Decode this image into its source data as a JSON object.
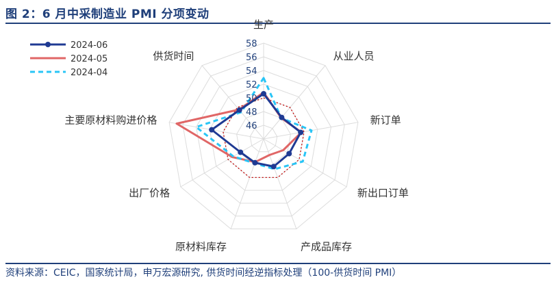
{
  "header": {
    "title": "图 2：6 月中采制造业 PMI 分项变动"
  },
  "footer": {
    "source": "资料来源：CEIC，国家统计局，申万宏源研究, 供货时间经逆指标处理（100-供货时间 PMI）"
  },
  "chart_data": {
    "type": "radar",
    "axes": [
      "生产",
      "从业人员",
      "新订单",
      "新出口订单",
      "产成品库存",
      "原材料库存",
      "出厂价格",
      "主要原材料购进价格",
      "供货时间"
    ],
    "ticks": [
      "46",
      "48",
      "50",
      "52",
      "54",
      "56",
      "58"
    ],
    "range": [
      44,
      58
    ],
    "grid": true,
    "legend_position": "top-left",
    "series": [
      {
        "name": "2024-06",
        "color": "#1f3a93",
        "style": "solid-marker",
        "values": [
          50.6,
          48.1,
          49.5,
          48.3,
          48.3,
          47.7,
          47.9,
          51.7,
          49.5
        ]
      },
      {
        "name": "2024-05",
        "color": "#e06666",
        "style": "solid",
        "values": [
          50.8,
          48.0,
          49.6,
          47.3,
          46.5,
          47.6,
          49.3,
          56.9,
          49.6
        ]
      },
      {
        "name": "2024-04",
        "color": "#29c5f6",
        "style": "dashed",
        "values": [
          52.9,
          48.0,
          51.1,
          50.6,
          48.7,
          47.8,
          49.1,
          54.0,
          49.1
        ]
      }
    ],
    "reference": {
      "color": "#c00000",
      "style": "dotted",
      "value": 50
    }
  }
}
